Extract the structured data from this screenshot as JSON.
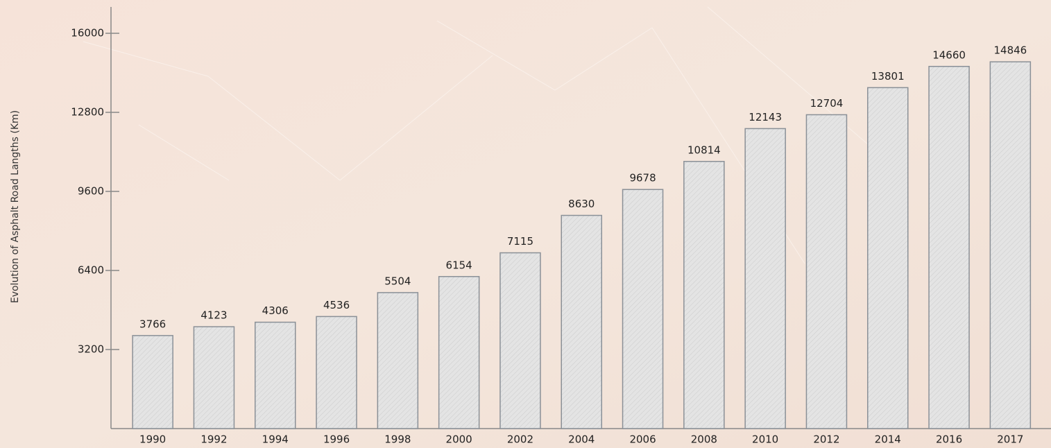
{
  "chart_data": {
    "type": "bar",
    "y_label": "Evolution of Asphalt Road Langths (Km)",
    "categories": [
      "1990",
      "1992",
      "1994",
      "1996",
      "1998",
      "2000",
      "2002",
      "2004",
      "2006",
      "2008",
      "2010",
      "2012",
      "2014",
      "2016",
      "2017"
    ],
    "values": [
      3766,
      4123,
      4306,
      4536,
      5504,
      6154,
      7115,
      8630,
      9678,
      10814,
      12143,
      12704,
      13801,
      14660,
      14846
    ],
    "color": "#e2e2e2",
    "ylim": [
      0,
      17000
    ],
    "yticks": [
      3200,
      6400,
      9600,
      12800,
      16000
    ],
    "grid": false
  }
}
